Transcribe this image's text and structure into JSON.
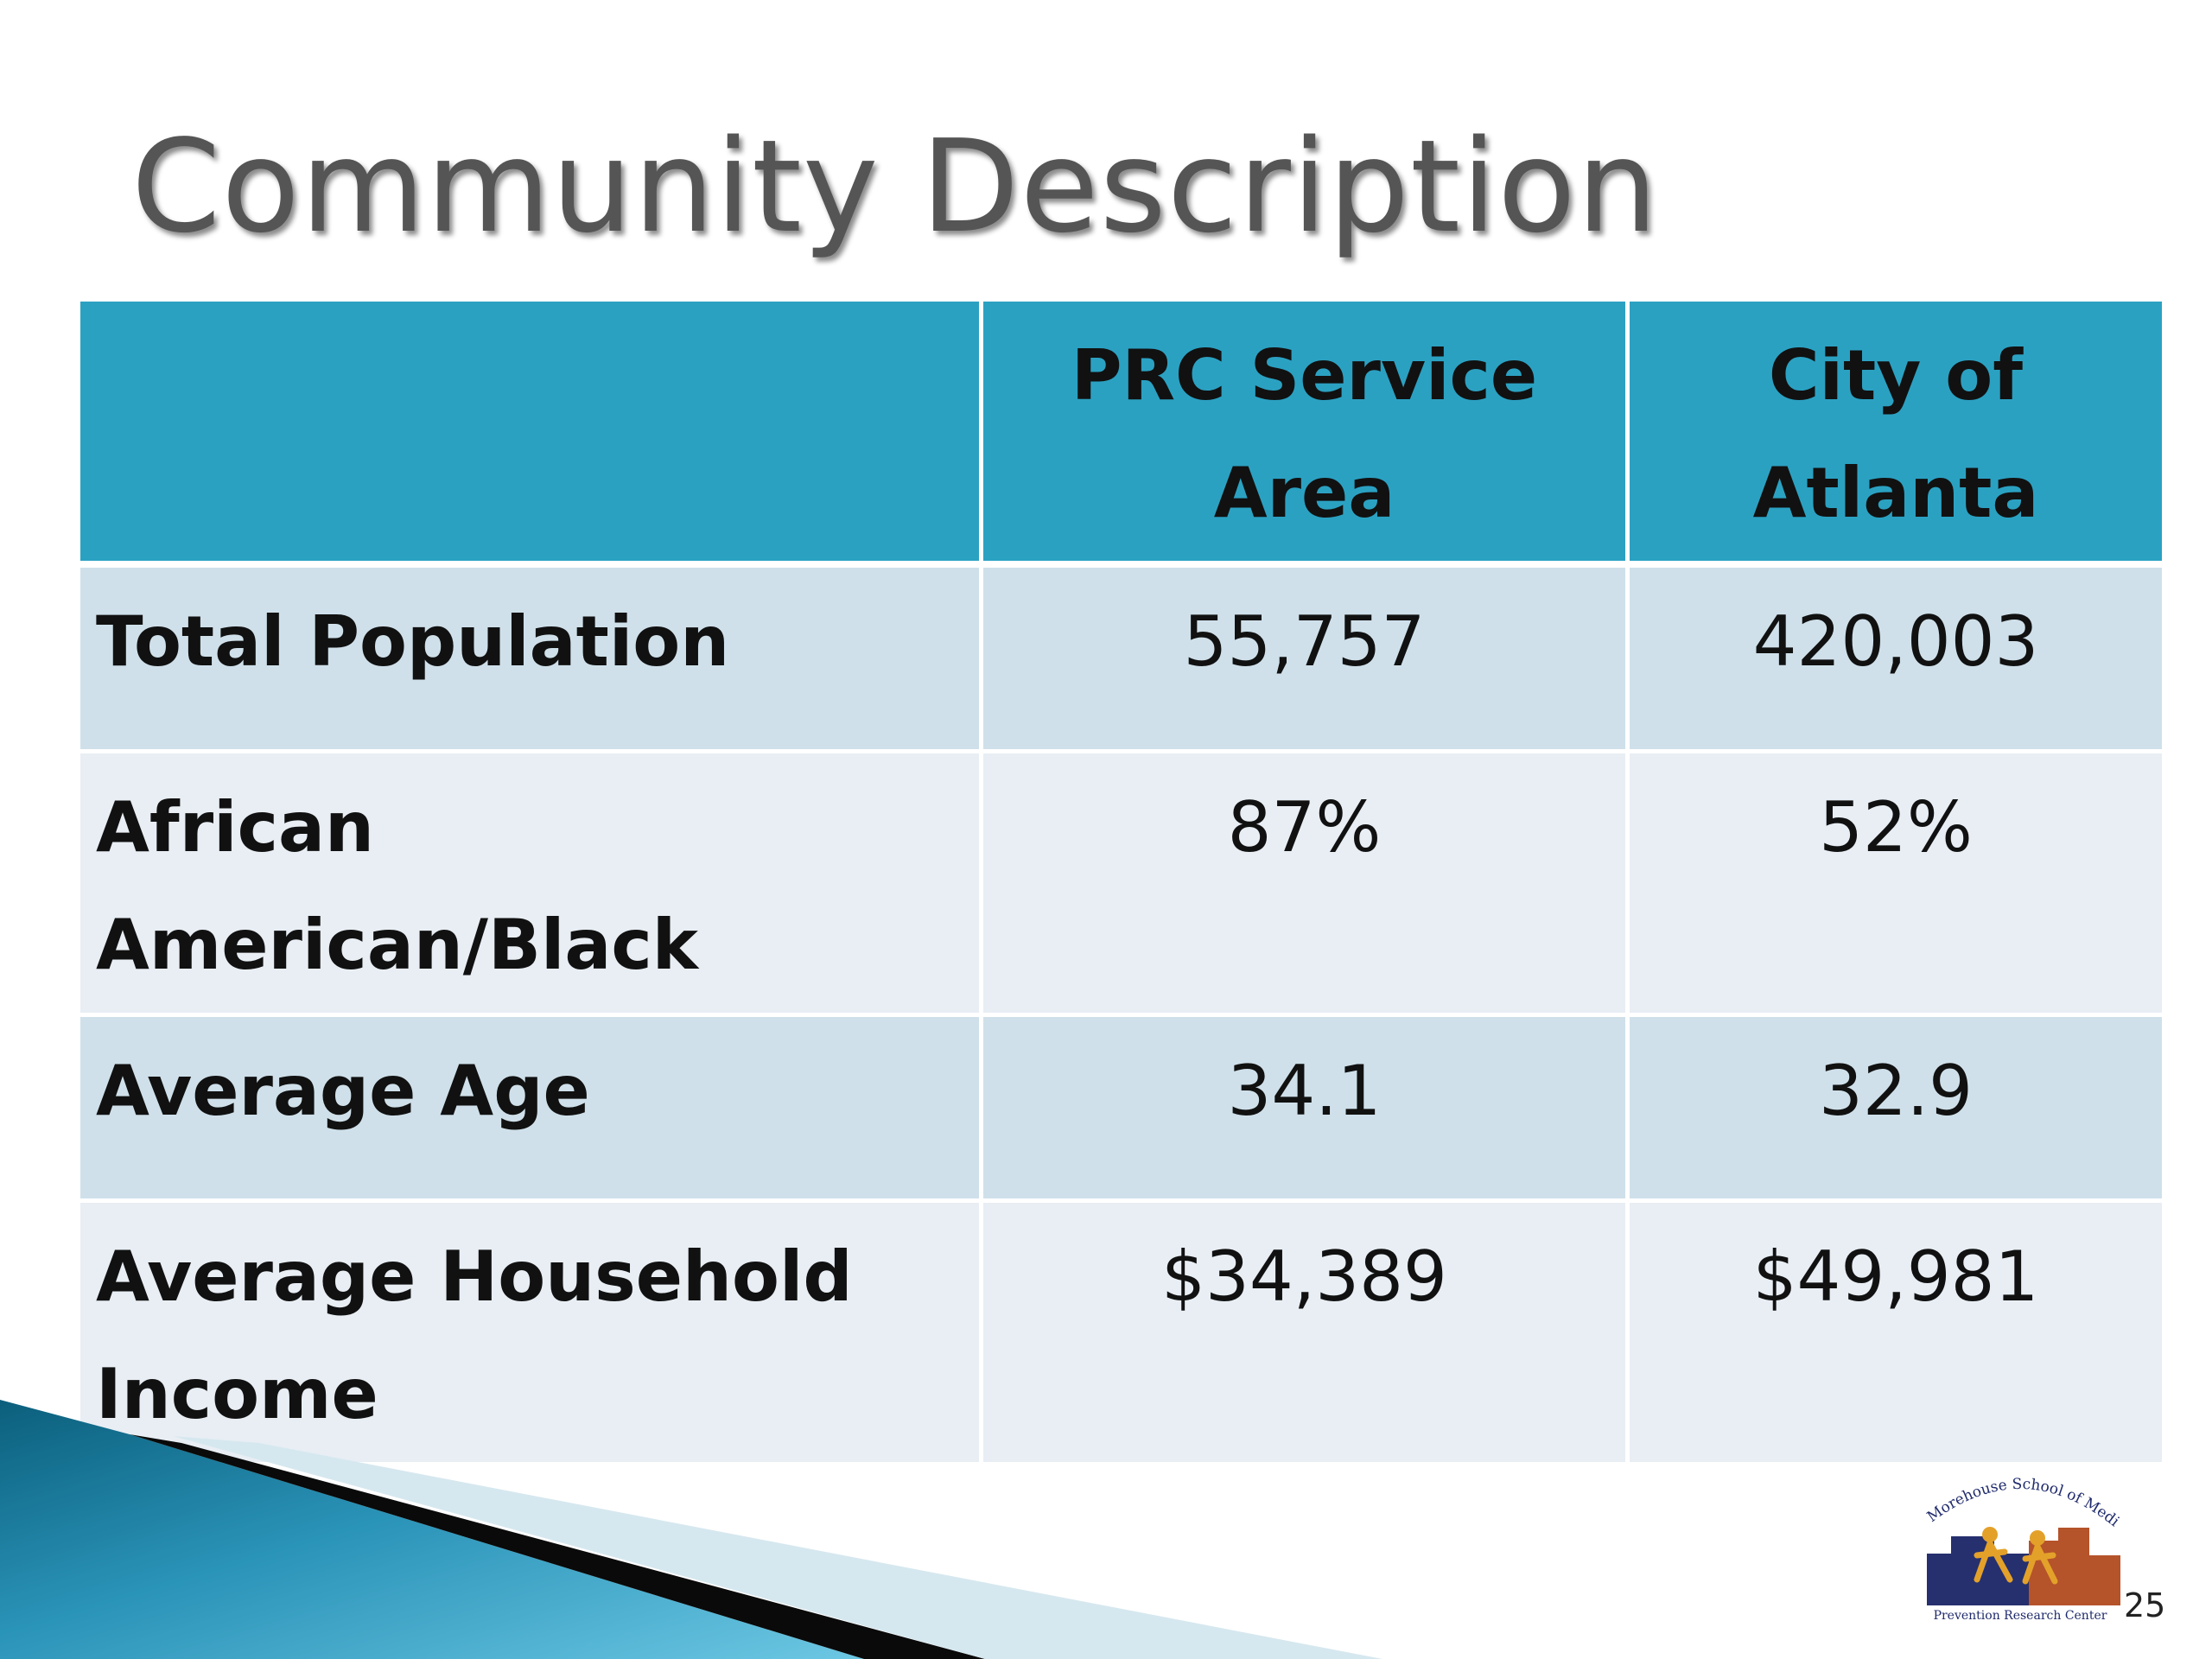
{
  "slide": {
    "title": "Community Description",
    "page_number": "25"
  },
  "table": {
    "headers": [
      "",
      "PRC Service Area",
      "City of Atlanta"
    ],
    "rows": [
      {
        "label": "Total Population",
        "prc": "55,757",
        "atlanta": "420,003"
      },
      {
        "label": "African American/Black",
        "prc": "87%",
        "atlanta": "52%"
      },
      {
        "label": "Average Age",
        "prc": "34.1",
        "atlanta": "32.9"
      },
      {
        "label": "Average Household Income",
        "prc": "$34,389",
        "atlanta": "$49,981"
      }
    ]
  },
  "logo": {
    "top_text": "Morehouse School of Medicine",
    "bottom_text": "Prevention Research Center"
  },
  "colors": {
    "header": "#2ba1c2",
    "row_odd": "#cfe0ea",
    "row_even": "#e8eef4",
    "title": "#555555"
  }
}
